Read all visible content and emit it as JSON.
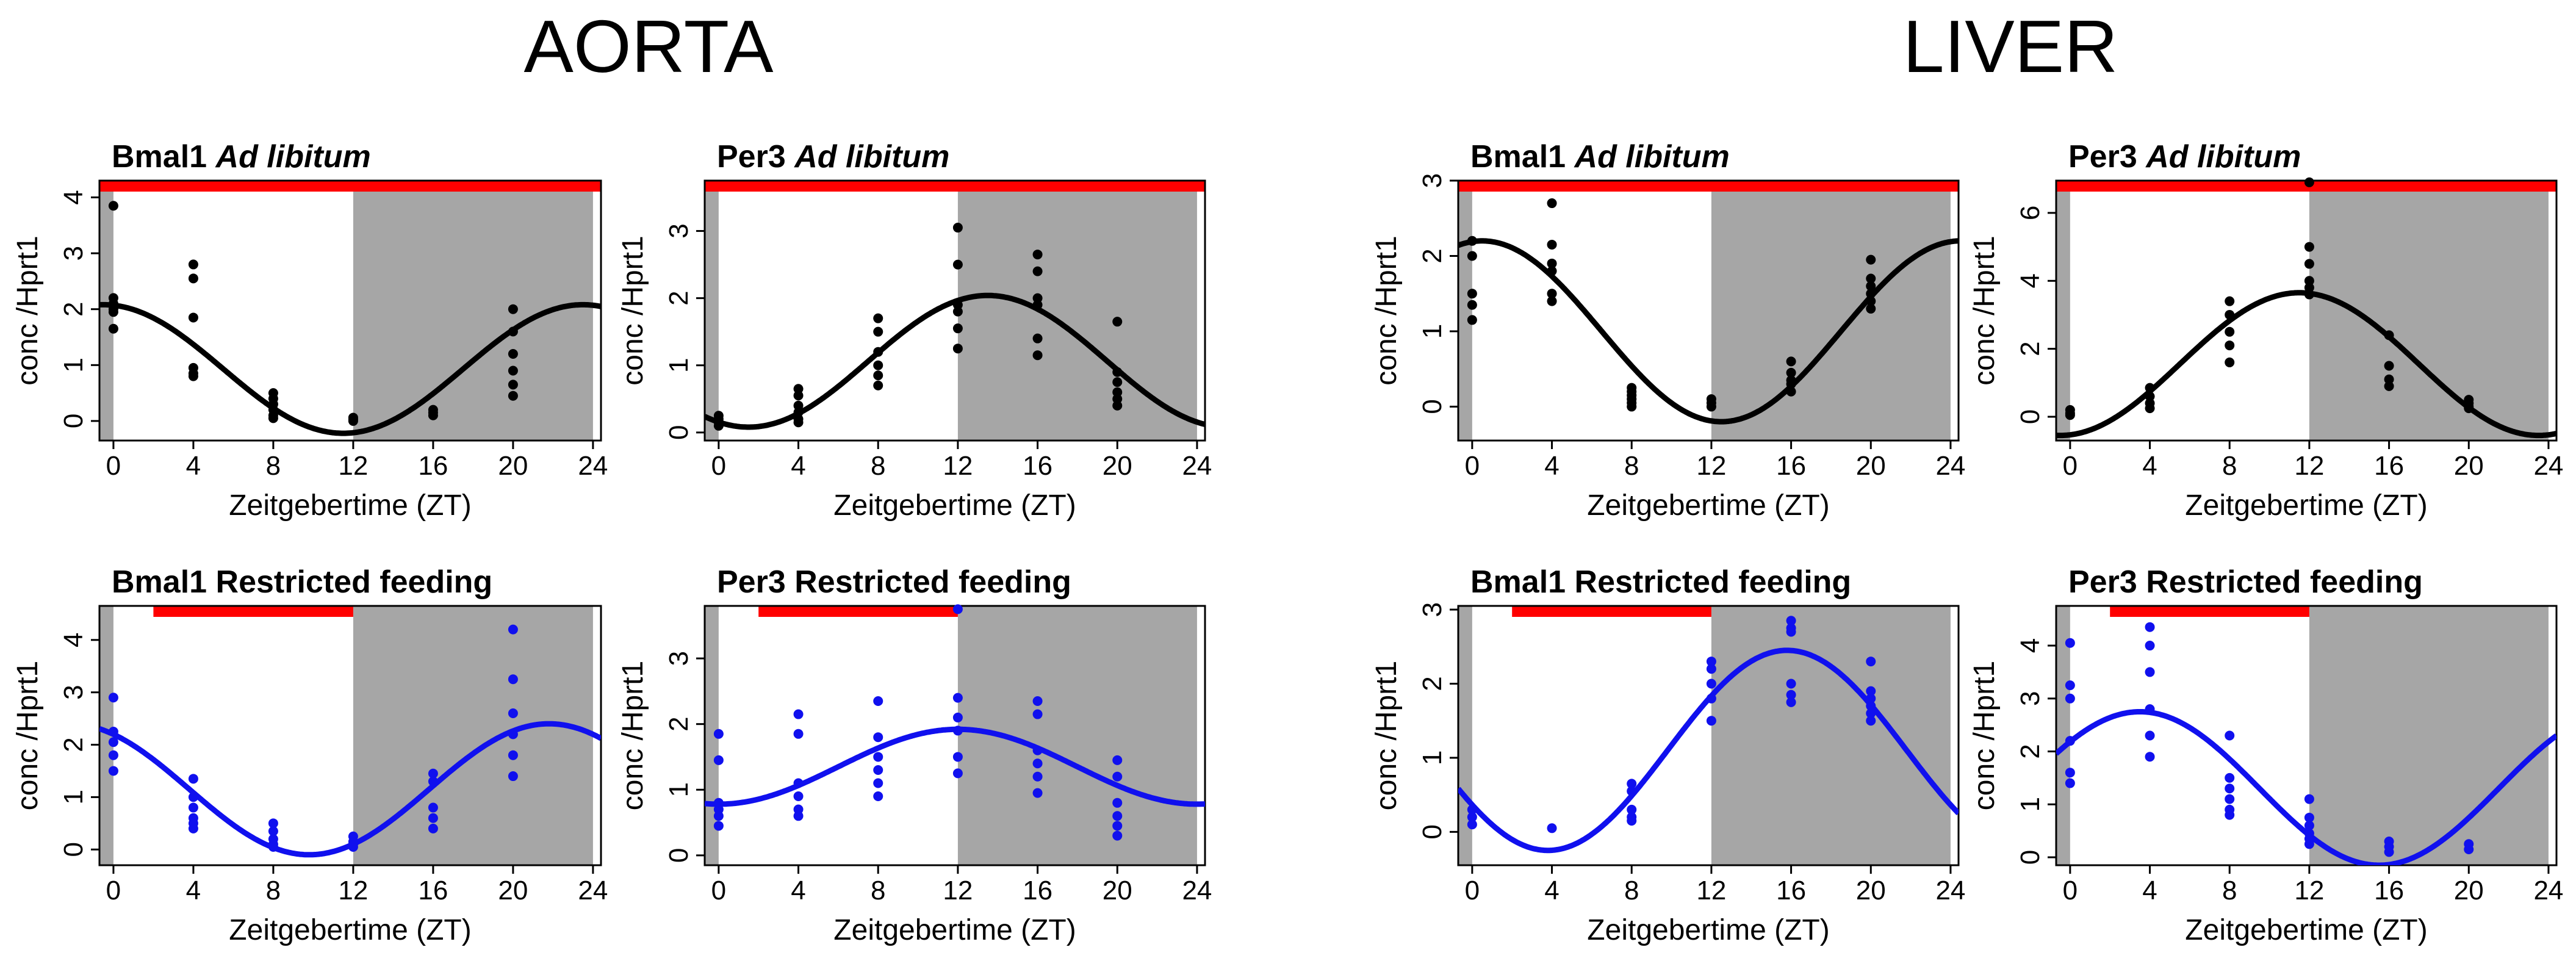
{
  "figure": {
    "sections": [
      {
        "title": "AORTA"
      },
      {
        "title": "LIVER"
      }
    ]
  },
  "chart_data": [
    {
      "type": "scatter",
      "section": "AORTA",
      "gene": "Bmal1",
      "condition": "Ad libitum",
      "condition_italic": true,
      "xlabel": "Zeitgebertime (ZT)",
      "ylabel": "conc /Hprt1",
      "xlim": [
        -0.7,
        24.4
      ],
      "ylim": [
        -0.35,
        4.3
      ],
      "xticks": [
        0,
        4,
        8,
        12,
        16,
        20,
        24
      ],
      "yticks": [
        0,
        1,
        2,
        3,
        4
      ],
      "dark_phases": [
        [
          -0.7,
          0
        ],
        [
          12,
          24
        ]
      ],
      "feeding_bar": [
        -0.7,
        24.4
      ],
      "point_color": "#000000",
      "fit_color": "#000000",
      "fit": {
        "mesor": 0.93,
        "amplitude": 1.15,
        "peak_zt": 23.5
      },
      "points": [
        [
          0,
          3.85
        ],
        [
          0,
          2.2
        ],
        [
          0,
          2.1
        ],
        [
          0,
          2.0
        ],
        [
          0,
          1.95
        ],
        [
          0,
          1.65
        ],
        [
          4,
          2.8
        ],
        [
          4,
          2.55
        ],
        [
          4,
          1.85
        ],
        [
          4,
          0.95
        ],
        [
          4,
          0.85
        ],
        [
          4,
          0.8
        ],
        [
          8,
          0.5
        ],
        [
          8,
          0.4
        ],
        [
          8,
          0.3
        ],
        [
          8,
          0.2
        ],
        [
          8,
          0.1
        ],
        [
          8,
          0.05
        ],
        [
          12,
          0.06
        ],
        [
          12,
          0.03
        ],
        [
          12,
          0.0
        ],
        [
          16,
          0.2
        ],
        [
          16,
          0.15
        ],
        [
          16,
          0.1
        ],
        [
          20,
          2.0
        ],
        [
          20,
          1.6
        ],
        [
          20,
          1.2
        ],
        [
          20,
          0.9
        ],
        [
          20,
          0.65
        ],
        [
          20,
          0.45
        ]
      ]
    },
    {
      "type": "scatter",
      "section": "AORTA",
      "gene": "Per3",
      "condition": "Ad libitum",
      "condition_italic": true,
      "xlabel": "Zeitgebertime (ZT)",
      "ylabel": "conc /Hprt1",
      "xlim": [
        -0.7,
        24.4
      ],
      "ylim": [
        -0.12,
        3.75
      ],
      "xticks": [
        0,
        4,
        8,
        12,
        16,
        20,
        24
      ],
      "yticks": [
        0,
        1,
        2,
        3
      ],
      "dark_phases": [
        [
          -0.7,
          0
        ],
        [
          12,
          24
        ]
      ],
      "feeding_bar": [
        -0.7,
        24.4
      ],
      "point_color": "#000000",
      "fit_color": "#000000",
      "fit": {
        "mesor": 1.06,
        "amplitude": 0.98,
        "peak_zt": 13.5
      },
      "points": [
        [
          0,
          0.25
        ],
        [
          0,
          0.2
        ],
        [
          0,
          0.15
        ],
        [
          0,
          0.1
        ],
        [
          4,
          0.65
        ],
        [
          4,
          0.55
        ],
        [
          4,
          0.4
        ],
        [
          4,
          0.3
        ],
        [
          4,
          0.2
        ],
        [
          4,
          0.15
        ],
        [
          8,
          1.7
        ],
        [
          8,
          1.5
        ],
        [
          8,
          1.2
        ],
        [
          8,
          1.0
        ],
        [
          8,
          0.85
        ],
        [
          8,
          0.7
        ],
        [
          12,
          3.05
        ],
        [
          12,
          2.5
        ],
        [
          12,
          1.9
        ],
        [
          12,
          1.8
        ],
        [
          12,
          1.55
        ],
        [
          12,
          1.25
        ],
        [
          16,
          2.65
        ],
        [
          16,
          2.4
        ],
        [
          16,
          2.0
        ],
        [
          16,
          1.9
        ],
        [
          16,
          1.4
        ],
        [
          16,
          1.15
        ],
        [
          20,
          1.65
        ],
        [
          20,
          0.9
        ],
        [
          20,
          0.75
        ],
        [
          20,
          0.6
        ],
        [
          20,
          0.5
        ],
        [
          20,
          0.4
        ]
      ]
    },
    {
      "type": "scatter",
      "section": "LIVER",
      "gene": "Bmal1",
      "condition": "Ad libitum",
      "condition_italic": true,
      "xlabel": "Zeitgebertime (ZT)",
      "ylabel": "conc /Hprt1",
      "xlim": [
        -0.7,
        24.4
      ],
      "ylim": [
        -0.45,
        3.0
      ],
      "xticks": [
        0,
        4,
        8,
        12,
        16,
        20,
        24
      ],
      "yticks": [
        0,
        1,
        2,
        3
      ],
      "dark_phases": [
        [
          -0.7,
          0
        ],
        [
          12,
          24
        ]
      ],
      "feeding_bar": [
        -0.7,
        24.4
      ],
      "point_color": "#000000",
      "fit_color": "#000000",
      "fit": {
        "mesor": 1.0,
        "amplitude": 1.2,
        "peak_zt": 0.5
      },
      "points": [
        [
          0,
          2.2
        ],
        [
          0,
          2.0
        ],
        [
          0,
          1.5
        ],
        [
          0,
          1.35
        ],
        [
          0,
          1.15
        ],
        [
          4,
          2.7
        ],
        [
          4,
          2.15
        ],
        [
          4,
          1.9
        ],
        [
          4,
          1.8
        ],
        [
          4,
          1.5
        ],
        [
          4,
          1.4
        ],
        [
          8,
          0.25
        ],
        [
          8,
          0.2
        ],
        [
          8,
          0.15
        ],
        [
          8,
          0.1
        ],
        [
          8,
          0.05
        ],
        [
          8,
          0.0
        ],
        [
          12,
          0.1
        ],
        [
          12,
          0.05
        ],
        [
          12,
          0.0
        ],
        [
          16,
          0.6
        ],
        [
          16,
          0.45
        ],
        [
          16,
          0.35
        ],
        [
          16,
          0.3
        ],
        [
          16,
          0.2
        ],
        [
          20,
          1.95
        ],
        [
          20,
          1.7
        ],
        [
          20,
          1.6
        ],
        [
          20,
          1.5
        ],
        [
          20,
          1.4
        ],
        [
          20,
          1.3
        ]
      ]
    },
    {
      "type": "scatter",
      "section": "LIVER",
      "gene": "Per3",
      "condition": "Ad libitum",
      "condition_italic": true,
      "xlabel": "Zeitgebertime (ZT)",
      "ylabel": "conc /Hprt1",
      "xlim": [
        -0.7,
        24.4
      ],
      "ylim": [
        -0.7,
        6.95
      ],
      "xticks": [
        0,
        4,
        8,
        12,
        16,
        20,
        24
      ],
      "yticks": [
        0,
        2,
        4,
        6
      ],
      "dark_phases": [
        [
          -0.7,
          0
        ],
        [
          12,
          24
        ]
      ],
      "feeding_bar": [
        -0.7,
        24.4
      ],
      "point_color": "#000000",
      "fit_color": "#000000",
      "fit": {
        "mesor": 1.55,
        "amplitude": 2.1,
        "peak_zt": 11.5
      },
      "points": [
        [
          0,
          0.2
        ],
        [
          0,
          0.1
        ],
        [
          0,
          0.05
        ],
        [
          4,
          0.85
        ],
        [
          4,
          0.6
        ],
        [
          4,
          0.4
        ],
        [
          4,
          0.25
        ],
        [
          8,
          3.4
        ],
        [
          8,
          3.0
        ],
        [
          8,
          2.5
        ],
        [
          8,
          2.1
        ],
        [
          8,
          1.6
        ],
        [
          12,
          6.9
        ],
        [
          12,
          5.0
        ],
        [
          12,
          4.5
        ],
        [
          12,
          4.0
        ],
        [
          12,
          3.8
        ],
        [
          12,
          3.6
        ],
        [
          16,
          2.4
        ],
        [
          16,
          1.5
        ],
        [
          16,
          1.1
        ],
        [
          16,
          0.9
        ],
        [
          20,
          0.5
        ],
        [
          20,
          0.4
        ],
        [
          20,
          0.3
        ],
        [
          20,
          0.25
        ]
      ]
    },
    {
      "type": "scatter",
      "section": "AORTA",
      "gene": "Bmal1",
      "condition": "Restricted feeding",
      "condition_italic": false,
      "xlabel": "Zeitgebertime (ZT)",
      "ylabel": "conc /Hprt1",
      "xlim": [
        -0.7,
        24.4
      ],
      "ylim": [
        -0.3,
        4.65
      ],
      "xticks": [
        0,
        4,
        8,
        12,
        16,
        20,
        24
      ],
      "yticks": [
        0,
        1,
        2,
        3,
        4
      ],
      "dark_phases": [
        [
          -0.7,
          0
        ],
        [
          12,
          24
        ]
      ],
      "feeding_bar": [
        2,
        12
      ],
      "point_color": "#1010ee",
      "fit_color": "#1010ee",
      "fit": {
        "mesor": 1.15,
        "amplitude": 1.25,
        "peak_zt": 21.8
      },
      "points": [
        [
          0,
          2.9
        ],
        [
          0,
          2.25
        ],
        [
          0,
          2.05
        ],
        [
          0,
          1.8
        ],
        [
          0,
          1.5
        ],
        [
          4,
          1.35
        ],
        [
          4,
          1.0
        ],
        [
          4,
          0.8
        ],
        [
          4,
          0.6
        ],
        [
          4,
          0.5
        ],
        [
          4,
          0.4
        ],
        [
          8,
          0.5
        ],
        [
          8,
          0.35
        ],
        [
          8,
          0.2
        ],
        [
          8,
          0.1
        ],
        [
          8,
          0.05
        ],
        [
          12,
          0.25
        ],
        [
          12,
          0.15
        ],
        [
          12,
          0.1
        ],
        [
          12,
          0.05
        ],
        [
          16,
          1.45
        ],
        [
          16,
          1.3
        ],
        [
          16,
          0.8
        ],
        [
          16,
          0.6
        ],
        [
          16,
          0.4
        ],
        [
          20,
          4.2
        ],
        [
          20,
          3.25
        ],
        [
          20,
          2.6
        ],
        [
          20,
          2.2
        ],
        [
          20,
          1.8
        ],
        [
          20,
          1.4
        ]
      ]
    },
    {
      "type": "scatter",
      "section": "AORTA",
      "gene": "Per3",
      "condition": "Restricted feeding",
      "condition_italic": false,
      "xlabel": "Zeitgebertime (ZT)",
      "ylabel": "conc /Hprt1",
      "xlim": [
        -0.7,
        24.4
      ],
      "ylim": [
        -0.15,
        3.8
      ],
      "xticks": [
        0,
        4,
        8,
        12,
        16,
        20,
        24
      ],
      "yticks": [
        0,
        1,
        2,
        3
      ],
      "dark_phases": [
        [
          -0.7,
          0
        ],
        [
          12,
          24
        ]
      ],
      "feeding_bar": [
        2,
        12
      ],
      "point_color": "#1010ee",
      "fit_color": "#1010ee",
      "fit": {
        "mesor": 1.35,
        "amplitude": 0.57,
        "peak_zt": 12.0
      },
      "points": [
        [
          0,
          1.85
        ],
        [
          0,
          1.45
        ],
        [
          0,
          0.8
        ],
        [
          0,
          0.7
        ],
        [
          0,
          0.6
        ],
        [
          0,
          0.45
        ],
        [
          4,
          2.15
        ],
        [
          4,
          1.85
        ],
        [
          4,
          1.1
        ],
        [
          4,
          0.9
        ],
        [
          4,
          0.7
        ],
        [
          4,
          0.6
        ],
        [
          8,
          2.35
        ],
        [
          8,
          1.8
        ],
        [
          8,
          1.5
        ],
        [
          8,
          1.3
        ],
        [
          8,
          1.1
        ],
        [
          8,
          0.9
        ],
        [
          12,
          3.75
        ],
        [
          12,
          2.4
        ],
        [
          12,
          2.1
        ],
        [
          12,
          1.9
        ],
        [
          12,
          1.5
        ],
        [
          12,
          1.25
        ],
        [
          16,
          2.35
        ],
        [
          16,
          2.15
        ],
        [
          16,
          1.6
        ],
        [
          16,
          1.4
        ],
        [
          16,
          1.2
        ],
        [
          16,
          0.95
        ],
        [
          20,
          1.45
        ],
        [
          20,
          1.2
        ],
        [
          20,
          0.8
        ],
        [
          20,
          0.6
        ],
        [
          20,
          0.45
        ],
        [
          20,
          0.3
        ]
      ]
    },
    {
      "type": "scatter",
      "section": "LIVER",
      "gene": "Bmal1",
      "condition": "Restricted feeding",
      "condition_italic": false,
      "xlabel": "Zeitgebertime (ZT)",
      "ylabel": "conc /Hprt1",
      "xlim": [
        -0.7,
        24.4
      ],
      "ylim": [
        -0.45,
        3.05
      ],
      "xticks": [
        0,
        4,
        8,
        12,
        16,
        20,
        24
      ],
      "yticks": [
        0,
        1,
        2,
        3
      ],
      "dark_phases": [
        [
          -0.7,
          0
        ],
        [
          12,
          24
        ]
      ],
      "feeding_bar": [
        2,
        12
      ],
      "point_color": "#1010ee",
      "fit_color": "#1010ee",
      "fit": {
        "mesor": 1.1,
        "amplitude": 1.35,
        "peak_zt": 15.8
      },
      "points": [
        [
          0,
          0.3
        ],
        [
          0,
          0.2
        ],
        [
          0,
          0.1
        ],
        [
          4,
          0.05
        ],
        [
          8,
          0.65
        ],
        [
          8,
          0.55
        ],
        [
          8,
          0.3
        ],
        [
          8,
          0.2
        ],
        [
          8,
          0.15
        ],
        [
          12,
          2.3
        ],
        [
          12,
          2.2
        ],
        [
          12,
          2.0
        ],
        [
          12,
          1.8
        ],
        [
          12,
          1.5
        ],
        [
          16,
          2.85
        ],
        [
          16,
          2.75
        ],
        [
          16,
          2.7
        ],
        [
          16,
          2.0
        ],
        [
          16,
          1.85
        ],
        [
          16,
          1.75
        ],
        [
          20,
          2.3
        ],
        [
          20,
          1.9
        ],
        [
          20,
          1.8
        ],
        [
          20,
          1.7
        ],
        [
          20,
          1.6
        ],
        [
          20,
          1.5
        ]
      ]
    },
    {
      "type": "scatter",
      "section": "LIVER",
      "gene": "Per3",
      "condition": "Restricted feeding",
      "condition_italic": false,
      "xlabel": "Zeitgebertime (ZT)",
      "ylabel": "conc /Hprt1",
      "xlim": [
        -0.7,
        24.4
      ],
      "ylim": [
        -0.15,
        4.75
      ],
      "xticks": [
        0,
        4,
        8,
        12,
        16,
        20,
        24
      ],
      "yticks": [
        0,
        1,
        2,
        3,
        4
      ],
      "dark_phases": [
        [
          -0.7,
          0
        ],
        [
          12,
          24
        ]
      ],
      "feeding_bar": [
        2,
        12
      ],
      "point_color": "#1010ee",
      "fit_color": "#1010ee",
      "fit": {
        "mesor": 1.3,
        "amplitude": 1.45,
        "peak_zt": 3.5
      },
      "points": [
        [
          0,
          4.05
        ],
        [
          0,
          3.25
        ],
        [
          0,
          3.0
        ],
        [
          0,
          2.2
        ],
        [
          0,
          1.6
        ],
        [
          0,
          1.4
        ],
        [
          4,
          4.35
        ],
        [
          4,
          4.0
        ],
        [
          4,
          3.5
        ],
        [
          4,
          2.8
        ],
        [
          4,
          2.3
        ],
        [
          4,
          1.9
        ],
        [
          8,
          2.3
        ],
        [
          8,
          1.5
        ],
        [
          8,
          1.3
        ],
        [
          8,
          1.1
        ],
        [
          8,
          0.9
        ],
        [
          8,
          0.8
        ],
        [
          12,
          1.1
        ],
        [
          12,
          0.75
        ],
        [
          12,
          0.6
        ],
        [
          12,
          0.45
        ],
        [
          12,
          0.35
        ],
        [
          12,
          0.25
        ],
        [
          16,
          0.3
        ],
        [
          16,
          0.2
        ],
        [
          16,
          0.1
        ],
        [
          20,
          0.25
        ],
        [
          20,
          0.15
        ]
      ]
    }
  ]
}
